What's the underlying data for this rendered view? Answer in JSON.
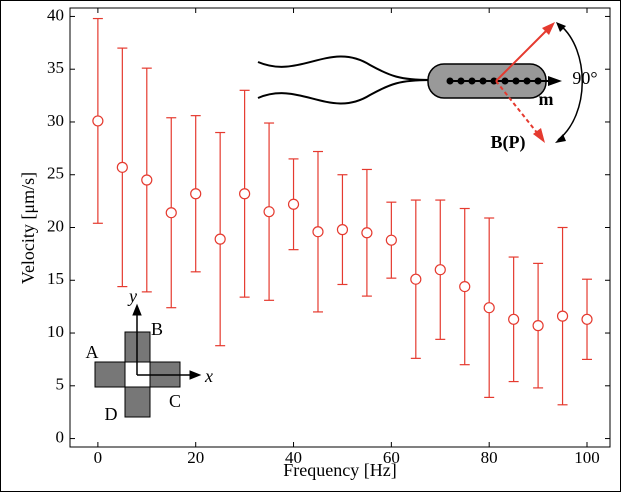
{
  "chart_data": {
    "type": "errorbar",
    "x_label": "Frequency [Hz]",
    "y_label": "Velocity [μm/s]",
    "series": [
      {
        "color": "#e53a2f",
        "x": [
          0,
          5,
          10,
          15,
          20,
          25,
          30,
          35,
          40,
          45,
          50,
          55,
          60,
          65,
          70,
          75,
          80,
          85,
          90,
          95,
          100
        ],
        "values": [
          30.1,
          25.7,
          24.5,
          21.4,
          23.2,
          18.9,
          23.2,
          21.5,
          22.2,
          19.6,
          19.8,
          19.5,
          18.8,
          15.1,
          16.0,
          14.4,
          12.4,
          11.3,
          10.7,
          11.6,
          11.3
        ],
        "errors": [
          9.7,
          11.3,
          10.6,
          9.0,
          7.4,
          10.1,
          9.8,
          8.4,
          4.3,
          7.6,
          5.2,
          6.0,
          3.6,
          7.5,
          6.6,
          7.4,
          8.5,
          5.9,
          5.9,
          8.4,
          3.8
        ]
      }
    ],
    "xlim": [
      -5.7,
      104.7
    ],
    "xticks": [
      0,
      20,
      40,
      60,
      80,
      100
    ],
    "ylim": [
      -0.8,
      40.8
    ],
    "yticks": [
      0,
      5,
      10,
      15,
      20,
      25,
      30,
      35,
      40
    ],
    "annotations": [
      {
        "text": "m"
      },
      {
        "text": "90°"
      },
      {
        "text": "B(P)"
      },
      {
        "text": "y"
      },
      {
        "text": "x"
      },
      {
        "text": "A"
      },
      {
        "text": "B"
      },
      {
        "text": "C"
      },
      {
        "text": "D"
      }
    ]
  }
}
